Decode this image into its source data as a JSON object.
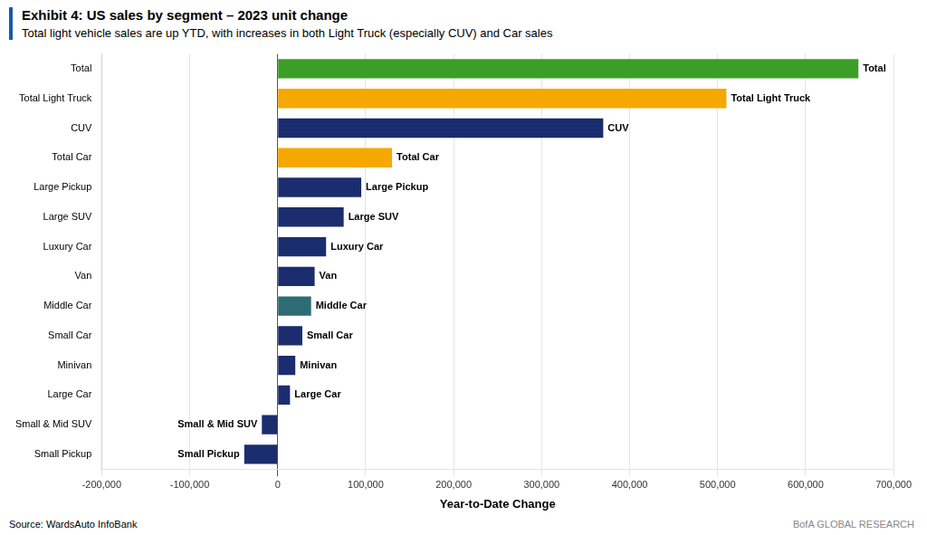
{
  "chart_data": {
    "type": "bar",
    "orientation": "horizontal",
    "title": "Exhibit 4: US sales by segment – 2023 unit change",
    "subtitle": "Total light vehicle sales are up YTD, with increases in both Light Truck (especially CUV) and Car sales",
    "xlabel": "Year-to-Date Change",
    "source": "Source: WardsAuto InfoBank",
    "watermark": "BofA GLOBAL RESEARCH",
    "categories": [
      "Total",
      "Total Light Truck",
      "CUV",
      "Total Car",
      "Large Pickup",
      "Large SUV",
      "Luxury Car",
      "Van",
      "Middle Car",
      "Small Car",
      "Minivan",
      "Large Car",
      "Small & Mid SUV",
      "Small Pickup"
    ],
    "values": [
      660000,
      510000,
      370000,
      130000,
      95000,
      75000,
      55000,
      42000,
      38000,
      28000,
      20000,
      14000,
      -18000,
      -38000
    ],
    "colors": [
      "#3d9e27",
      "#f5a800",
      "#1b2d6e",
      "#f5a800",
      "#1b2d6e",
      "#1b2d6e",
      "#1b2d6e",
      "#1b2d6e",
      "#2e6b74",
      "#1b2d6e",
      "#1b2d6e",
      "#1b2d6e",
      "#1b2d6e",
      "#1b2d6e"
    ],
    "annotations": [
      {
        "text": "Total",
        "category": "Total"
      },
      {
        "text": "Total Light Truck",
        "category": "Total Light Truck"
      },
      {
        "text": "CUV",
        "category": "CUV"
      },
      {
        "text": "Total Car",
        "category": "Total Car"
      },
      {
        "text": "Large Pickup",
        "category": "Large Pickup"
      },
      {
        "text": "Large SUV",
        "category": "Large SUV"
      },
      {
        "text": "Luxury Car",
        "category": "Luxury Car"
      },
      {
        "text": "Van",
        "category": "Van"
      },
      {
        "text": "Middle Car",
        "category": "Middle Car"
      },
      {
        "text": "Small Car",
        "category": "Small Car"
      },
      {
        "text": "Minivan",
        "category": "Minivan"
      },
      {
        "text": "Large Car",
        "category": "Large Car"
      },
      {
        "text": "Small & Mid SUV",
        "category": "Small & Mid SUV"
      },
      {
        "text": "Small Pickup",
        "category": "Small Pickup"
      }
    ],
    "xlim": [
      -200000,
      700000
    ],
    "xticks": [
      {
        "value": -200000,
        "label": "-200,000"
      },
      {
        "value": -100000,
        "label": "-100,000"
      },
      0,
      {
        "value": 100000,
        "label": "100,000"
      },
      {
        "value": 200000,
        "label": "200,000"
      },
      {
        "value": 300000,
        "label": "300,000"
      },
      {
        "value": 400000,
        "label": "400,000"
      },
      {
        "value": 500000,
        "label": "500,000"
      },
      {
        "value": 600000,
        "label": "600,000"
      },
      {
        "value": 700000,
        "label": "700,000"
      }
    ],
    "grid": true
  }
}
